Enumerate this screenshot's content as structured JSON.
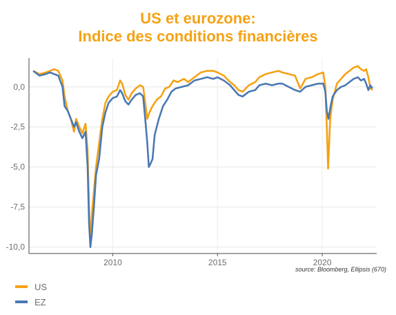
{
  "chart_data": {
    "type": "line",
    "title_line1": "US et eurozone:",
    "title_line2": "Indice des conditions financières",
    "xlabel": "",
    "ylabel": "",
    "source": "source: Bloomberg, Ellipsis (670)",
    "xlim": [
      2006.0,
      2022.6
    ],
    "ylim": [
      -10.4,
      1.8
    ],
    "x_ticks": [
      2010,
      2015,
      2020
    ],
    "y_ticks": [
      0,
      -2.5,
      -5,
      -7.5,
      -10
    ],
    "y_tick_labels": [
      "0,0",
      "-2,5",
      "-5,0",
      "-7,5",
      "-10,0"
    ],
    "grid": true,
    "legend_position": "bottom-left",
    "series": [
      {
        "name": "US",
        "color": "#f5a214",
        "points": [
          [
            2006.2,
            1.0
          ],
          [
            2006.5,
            0.8
          ],
          [
            2006.8,
            0.9
          ],
          [
            2007.0,
            1.0
          ],
          [
            2007.2,
            1.1
          ],
          [
            2007.4,
            1.0
          ],
          [
            2007.6,
            0.4
          ],
          [
            2007.7,
            -0.6
          ],
          [
            2007.85,
            -1.5
          ],
          [
            2008.0,
            -2.0
          ],
          [
            2008.15,
            -2.8
          ],
          [
            2008.25,
            -2.0
          ],
          [
            2008.4,
            -2.5
          ],
          [
            2008.55,
            -2.9
          ],
          [
            2008.7,
            -2.3
          ],
          [
            2008.8,
            -4.0
          ],
          [
            2008.87,
            -7.5
          ],
          [
            2008.93,
            -9.8
          ],
          [
            2009.0,
            -8.0
          ],
          [
            2009.1,
            -6.5
          ],
          [
            2009.2,
            -5.0
          ],
          [
            2009.35,
            -3.5
          ],
          [
            2009.5,
            -2.0
          ],
          [
            2009.65,
            -1.0
          ],
          [
            2009.8,
            -0.6
          ],
          [
            2010.0,
            -0.3
          ],
          [
            2010.2,
            -0.2
          ],
          [
            2010.35,
            0.4
          ],
          [
            2010.45,
            0.2
          ],
          [
            2010.6,
            -0.5
          ],
          [
            2010.75,
            -0.8
          ],
          [
            2010.9,
            -0.4
          ],
          [
            2011.1,
            -0.1
          ],
          [
            2011.3,
            0.1
          ],
          [
            2011.45,
            0.0
          ],
          [
            2011.55,
            -1.0
          ],
          [
            2011.65,
            -2.0
          ],
          [
            2011.75,
            -1.6
          ],
          [
            2011.9,
            -1.2
          ],
          [
            2012.1,
            -0.8
          ],
          [
            2012.3,
            -0.6
          ],
          [
            2012.5,
            -0.1
          ],
          [
            2012.7,
            0.0
          ],
          [
            2012.9,
            0.4
          ],
          [
            2013.1,
            0.3
          ],
          [
            2013.4,
            0.5
          ],
          [
            2013.6,
            0.3
          ],
          [
            2013.9,
            0.6
          ],
          [
            2014.2,
            0.9
          ],
          [
            2014.5,
            1.0
          ],
          [
            2014.8,
            1.0
          ],
          [
            2015.0,
            0.9
          ],
          [
            2015.3,
            0.7
          ],
          [
            2015.6,
            0.3
          ],
          [
            2015.8,
            0.1
          ],
          [
            2016.0,
            -0.2
          ],
          [
            2016.2,
            -0.3
          ],
          [
            2016.5,
            0.1
          ],
          [
            2016.8,
            0.3
          ],
          [
            2017.0,
            0.6
          ],
          [
            2017.3,
            0.8
          ],
          [
            2017.6,
            0.9
          ],
          [
            2017.9,
            1.0
          ],
          [
            2018.1,
            0.9
          ],
          [
            2018.4,
            0.8
          ],
          [
            2018.7,
            0.7
          ],
          [
            2018.95,
            -0.1
          ],
          [
            2019.2,
            0.5
          ],
          [
            2019.5,
            0.6
          ],
          [
            2019.8,
            0.8
          ],
          [
            2020.05,
            0.9
          ],
          [
            2020.15,
            0.0
          ],
          [
            2020.22,
            -2.5
          ],
          [
            2020.28,
            -5.1
          ],
          [
            2020.38,
            -2.0
          ],
          [
            2020.5,
            -0.8
          ],
          [
            2020.7,
            0.2
          ],
          [
            2020.9,
            0.5
          ],
          [
            2021.1,
            0.8
          ],
          [
            2021.3,
            1.0
          ],
          [
            2021.5,
            1.2
          ],
          [
            2021.7,
            1.3
          ],
          [
            2021.85,
            1.1
          ],
          [
            2022.0,
            1.0
          ],
          [
            2022.1,
            1.1
          ],
          [
            2022.2,
            0.6
          ],
          [
            2022.3,
            -0.1
          ],
          [
            2022.4,
            -0.2
          ]
        ]
      },
      {
        "name": "EZ",
        "color": "#4a78b4",
        "points": [
          [
            2006.2,
            1.0
          ],
          [
            2006.5,
            0.7
          ],
          [
            2006.8,
            0.8
          ],
          [
            2007.0,
            0.9
          ],
          [
            2007.2,
            0.8
          ],
          [
            2007.4,
            0.7
          ],
          [
            2007.6,
            0.0
          ],
          [
            2007.7,
            -1.2
          ],
          [
            2007.85,
            -1.5
          ],
          [
            2008.0,
            -2.0
          ],
          [
            2008.15,
            -2.5
          ],
          [
            2008.25,
            -2.2
          ],
          [
            2008.4,
            -2.8
          ],
          [
            2008.55,
            -3.2
          ],
          [
            2008.7,
            -2.8
          ],
          [
            2008.8,
            -5.0
          ],
          [
            2008.87,
            -8.5
          ],
          [
            2008.93,
            -10.0
          ],
          [
            2009.0,
            -9.2
          ],
          [
            2009.1,
            -7.5
          ],
          [
            2009.2,
            -5.5
          ],
          [
            2009.35,
            -4.5
          ],
          [
            2009.5,
            -2.5
          ],
          [
            2009.65,
            -1.6
          ],
          [
            2009.8,
            -1.0
          ],
          [
            2010.0,
            -0.7
          ],
          [
            2010.2,
            -0.6
          ],
          [
            2010.35,
            -0.2
          ],
          [
            2010.45,
            -0.4
          ],
          [
            2010.6,
            -0.9
          ],
          [
            2010.75,
            -1.1
          ],
          [
            2010.9,
            -0.8
          ],
          [
            2011.1,
            -0.5
          ],
          [
            2011.3,
            -0.4
          ],
          [
            2011.45,
            -0.6
          ],
          [
            2011.55,
            -2.0
          ],
          [
            2011.65,
            -3.5
          ],
          [
            2011.72,
            -5.0
          ],
          [
            2011.8,
            -4.8
          ],
          [
            2011.9,
            -4.5
          ],
          [
            2012.0,
            -3.0
          ],
          [
            2012.2,
            -2.0
          ],
          [
            2012.4,
            -1.2
          ],
          [
            2012.6,
            -0.8
          ],
          [
            2012.8,
            -0.3
          ],
          [
            2013.0,
            -0.1
          ],
          [
            2013.3,
            0.0
          ],
          [
            2013.6,
            0.1
          ],
          [
            2013.9,
            0.4
          ],
          [
            2014.2,
            0.5
          ],
          [
            2014.5,
            0.6
          ],
          [
            2014.8,
            0.5
          ],
          [
            2015.0,
            0.6
          ],
          [
            2015.3,
            0.4
          ],
          [
            2015.6,
            0.1
          ],
          [
            2015.8,
            -0.2
          ],
          [
            2016.0,
            -0.5
          ],
          [
            2016.2,
            -0.6
          ],
          [
            2016.5,
            -0.3
          ],
          [
            2016.8,
            -0.2
          ],
          [
            2017.0,
            0.1
          ],
          [
            2017.3,
            0.2
          ],
          [
            2017.6,
            0.1
          ],
          [
            2017.9,
            0.2
          ],
          [
            2018.1,
            0.2
          ],
          [
            2018.4,
            0.0
          ],
          [
            2018.7,
            -0.2
          ],
          [
            2018.95,
            -0.3
          ],
          [
            2019.2,
            0.0
          ],
          [
            2019.5,
            0.1
          ],
          [
            2019.8,
            0.2
          ],
          [
            2020.05,
            0.2
          ],
          [
            2020.15,
            -0.3
          ],
          [
            2020.22,
            -1.5
          ],
          [
            2020.3,
            -2.0
          ],
          [
            2020.4,
            -1.2
          ],
          [
            2020.5,
            -0.6
          ],
          [
            2020.7,
            -0.2
          ],
          [
            2020.9,
            0.0
          ],
          [
            2021.1,
            0.1
          ],
          [
            2021.3,
            0.3
          ],
          [
            2021.5,
            0.5
          ],
          [
            2021.7,
            0.6
          ],
          [
            2021.85,
            0.4
          ],
          [
            2022.0,
            0.5
          ],
          [
            2022.1,
            0.2
          ],
          [
            2022.2,
            -0.2
          ],
          [
            2022.3,
            0.1
          ],
          [
            2022.4,
            -0.1
          ]
        ]
      }
    ]
  }
}
